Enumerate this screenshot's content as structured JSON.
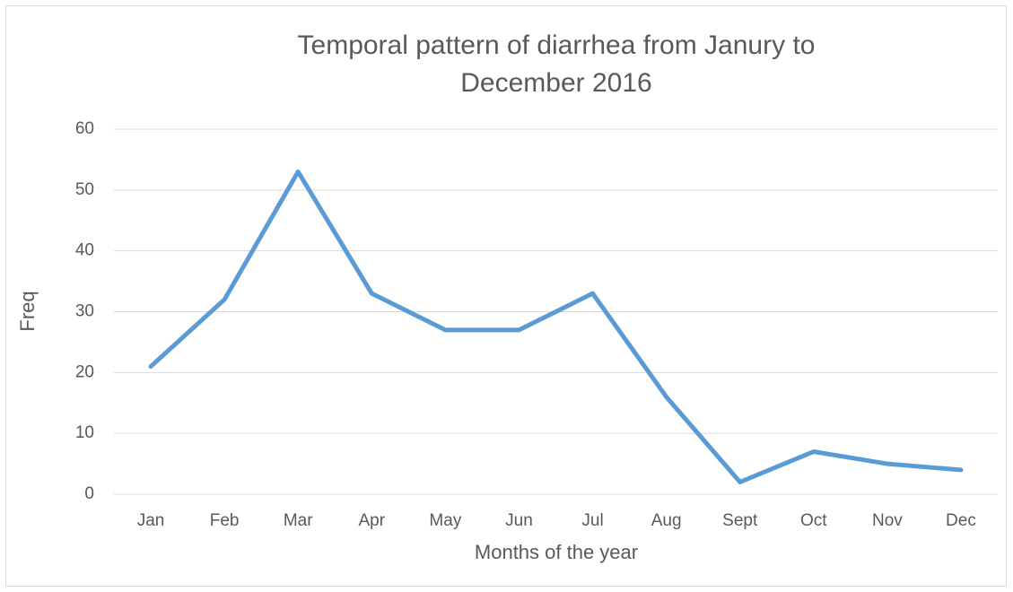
{
  "chart_data": {
    "type": "line",
    "title": [
      "Temporal pattern of diarrhea from Janury to",
      "December 2016"
    ],
    "x_label": "Months of the year",
    "y_label": "Freq",
    "categories": [
      "Jan",
      "Feb",
      "Mar",
      "Apr",
      "May",
      "Jun",
      "Jul",
      "Aug",
      "Sept",
      "Oct",
      "Nov",
      "Dec"
    ],
    "series": [
      {
        "name": "Freq",
        "color": "#5b9bd5",
        "values": [
          21,
          32,
          53,
          33,
          27,
          27,
          33,
          16,
          2,
          7,
          5,
          4
        ]
      }
    ],
    "ylim": [
      0,
      60
    ],
    "yticks": [
      0,
      10,
      20,
      30,
      40,
      50,
      60
    ],
    "grid": true
  }
}
